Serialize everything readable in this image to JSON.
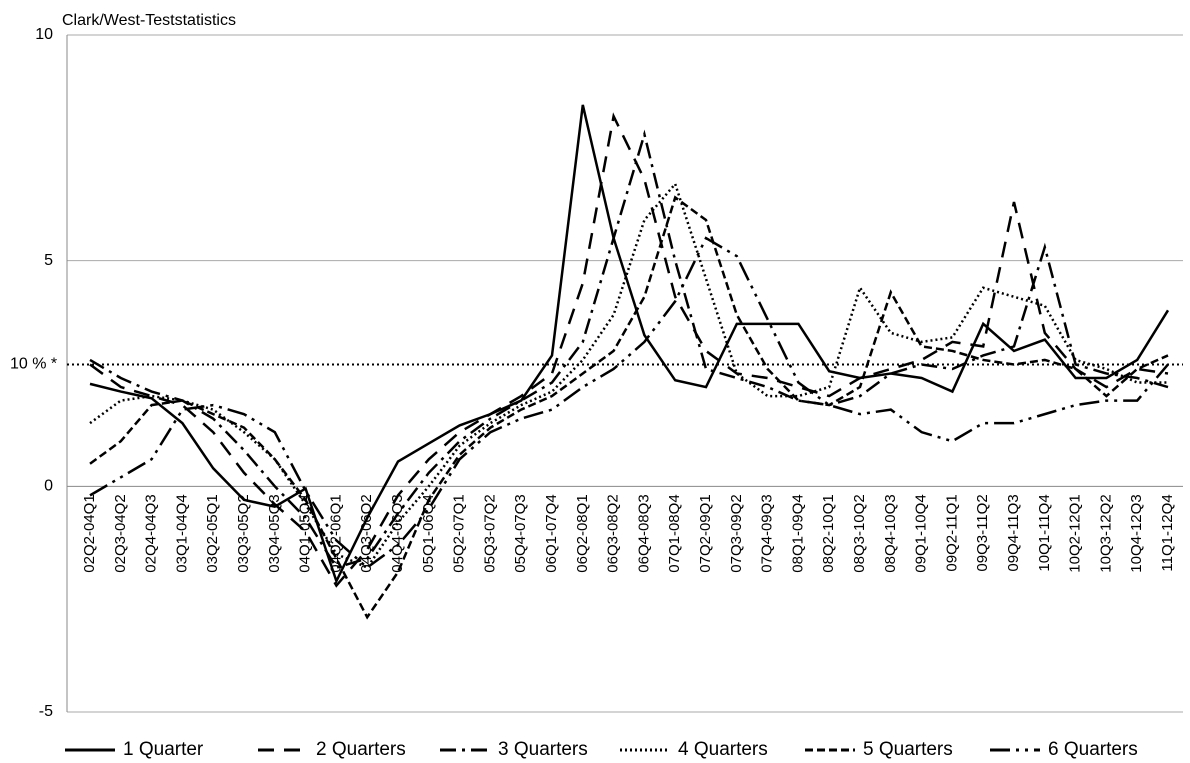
{
  "chart_data": {
    "type": "line",
    "title": "Clark/West-Teststatistics",
    "categories": [
      "02Q2-04Q1",
      "02Q3-04Q2",
      "02Q4-04Q3",
      "03Q1-04Q4",
      "03Q2-05Q1",
      "03Q3-05Q2",
      "03Q4-05Q3",
      "04Q1-05Q4",
      "04Q2-06Q1",
      "04Q3-06Q2",
      "04Q4-06Q3",
      "05Q1-06Q4",
      "05Q2-07Q1",
      "05Q3-07Q2",
      "05Q4-07Q3",
      "06Q1-07Q4",
      "06Q2-08Q1",
      "06Q3-08Q2",
      "06Q4-08Q3",
      "07Q1-08Q4",
      "07Q2-09Q1",
      "07Q3-09Q2",
      "07Q4-09Q3",
      "08Q1-09Q4",
      "08Q2-10Q1",
      "08Q3-10Q2",
      "08Q4-10Q3",
      "09Q1-10Q4",
      "09Q2-11Q1",
      "09Q3-11Q2",
      "09Q4-11Q3",
      "10Q1-11Q4",
      "10Q2-12Q1",
      "10Q3-12Q2",
      "10Q4-12Q3",
      "11Q1-12Q4"
    ],
    "series": [
      {
        "name": "1 Quarter",
        "color": "#000000",
        "dash": "none",
        "values": [
          2.27,
          2.1,
          1.95,
          1.4,
          0.4,
          -0.3,
          -0.45,
          -0.05,
          -2.1,
          -0.7,
          0.55,
          0.95,
          1.35,
          1.6,
          1.9,
          2.9,
          8.45,
          5.5,
          3.35,
          2.35,
          2.2,
          3.6,
          3.6,
          3.6,
          2.55,
          2.4,
          2.5,
          2.4,
          2.1,
          3.6,
          3.0,
          3.25,
          2.4,
          2.4,
          2.8,
          3.9
        ]
      },
      {
        "name": "2 Quarters",
        "color": "#000000",
        "dash": "16 10",
        "values": [
          2.7,
          2.2,
          2.0,
          1.8,
          1.2,
          0.3,
          -0.4,
          -1.0,
          -2.2,
          -1.4,
          -0.2,
          0.6,
          1.2,
          1.6,
          2.0,
          2.5,
          4.5,
          8.2,
          6.8,
          4.2,
          3.0,
          2.5,
          2.4,
          2.2,
          2.0,
          2.4,
          2.6,
          2.8,
          3.2,
          3.1,
          6.3,
          3.4,
          2.6,
          2.2,
          2.6,
          2.5
        ]
      },
      {
        "name": "3 Quarters",
        "color": "#000000",
        "dash": "16 6 3 6",
        "values": [
          2.8,
          2.4,
          2.1,
          1.9,
          1.5,
          0.8,
          0.0,
          -0.7,
          -1.8,
          -1.6,
          -0.6,
          0.3,
          1.0,
          1.5,
          1.9,
          2.3,
          3.2,
          5.5,
          7.8,
          5.0,
          2.6,
          2.4,
          2.2,
          1.9,
          1.8,
          2.0,
          2.5,
          2.7,
          2.6,
          2.9,
          3.1,
          5.3,
          2.7,
          2.5,
          2.4,
          2.2
        ]
      },
      {
        "name": "4 Quarters",
        "color": "#000000",
        "dash": "2 3",
        "values": [
          1.4,
          1.9,
          2.0,
          1.9,
          1.7,
          1.2,
          0.6,
          -0.4,
          -1.5,
          -1.8,
          -0.8,
          0.0,
          0.9,
          1.4,
          1.8,
          2.1,
          2.8,
          3.8,
          5.9,
          6.7,
          4.6,
          2.5,
          2.0,
          2.0,
          2.2,
          4.4,
          3.4,
          3.2,
          3.3,
          4.4,
          4.2,
          4.0,
          2.8,
          2.6,
          2.3,
          2.3
        ]
      },
      {
        "name": "5 Quarters",
        "color": "#000000",
        "dash": "8 4",
        "values": [
          0.5,
          1.0,
          1.8,
          1.9,
          1.6,
          1.3,
          0.6,
          -0.3,
          -1.6,
          -2.9,
          -1.9,
          -0.3,
          0.7,
          1.3,
          1.7,
          2.0,
          2.5,
          3.0,
          4.2,
          6.4,
          5.9,
          3.8,
          2.6,
          1.9,
          1.8,
          2.2,
          4.3,
          3.1,
          3.0,
          2.8,
          2.7,
          2.8,
          2.6,
          2.0,
          2.6,
          2.9
        ]
      },
      {
        "name": "6 Quarters",
        "color": "#000000",
        "dash": "20 6 3 6 3 6",
        "values": [
          -0.2,
          0.2,
          0.6,
          1.7,
          1.8,
          1.6,
          1.2,
          -0.1,
          -1.2,
          -1.8,
          -1.3,
          -0.5,
          0.6,
          1.2,
          1.5,
          1.7,
          2.2,
          2.6,
          3.2,
          4.1,
          5.5,
          5.1,
          3.7,
          2.3,
          1.8,
          1.6,
          1.7,
          1.2,
          1.0,
          1.4,
          1.4,
          1.6,
          1.8,
          1.9,
          1.9,
          2.7
        ]
      }
    ],
    "threshold": {
      "value": 2.7,
      "label": "10 % *"
    },
    "ylim": [
      -5,
      10
    ],
    "yticks": [
      -5,
      0,
      5,
      10
    ],
    "grid": true
  }
}
